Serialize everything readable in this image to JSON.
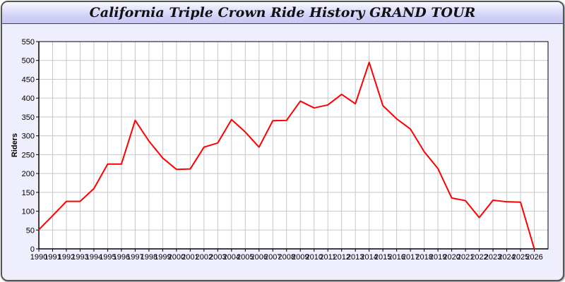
{
  "chart_data": {
    "type": "line",
    "title": "California Triple Crown Ride History GRAND TOUR",
    "xlabel": "",
    "ylabel": "Riders",
    "ylim": [
      0,
      550
    ],
    "xlim": [
      1990,
      2027
    ],
    "grid": true,
    "line_color": "#ff0000",
    "x": [
      1990,
      1991,
      1992,
      1993,
      1994,
      1995,
      1996,
      1997,
      1998,
      1999,
      2000,
      2001,
      2002,
      2003,
      2004,
      2005,
      2006,
      2007,
      2008,
      2009,
      2010,
      2011,
      2012,
      2013,
      2014,
      2015,
      2016,
      2017,
      2018,
      2019,
      2020,
      2021,
      2022,
      2023,
      2024,
      2025,
      2026
    ],
    "series": [
      {
        "values": [
          51,
          88,
          126,
          126,
          160,
          225,
          225,
          341,
          286,
          241,
          211,
          212,
          270,
          281,
          343,
          310,
          270,
          340,
          341,
          392,
          374,
          382,
          410,
          385,
          495,
          380,
          345,
          318,
          258,
          213,
          135,
          128,
          83,
          129,
          125,
          124,
          0
        ]
      }
    ],
    "yticks": [
      0,
      50,
      100,
      150,
      200,
      250,
      300,
      350,
      400,
      450,
      500,
      550
    ]
  }
}
